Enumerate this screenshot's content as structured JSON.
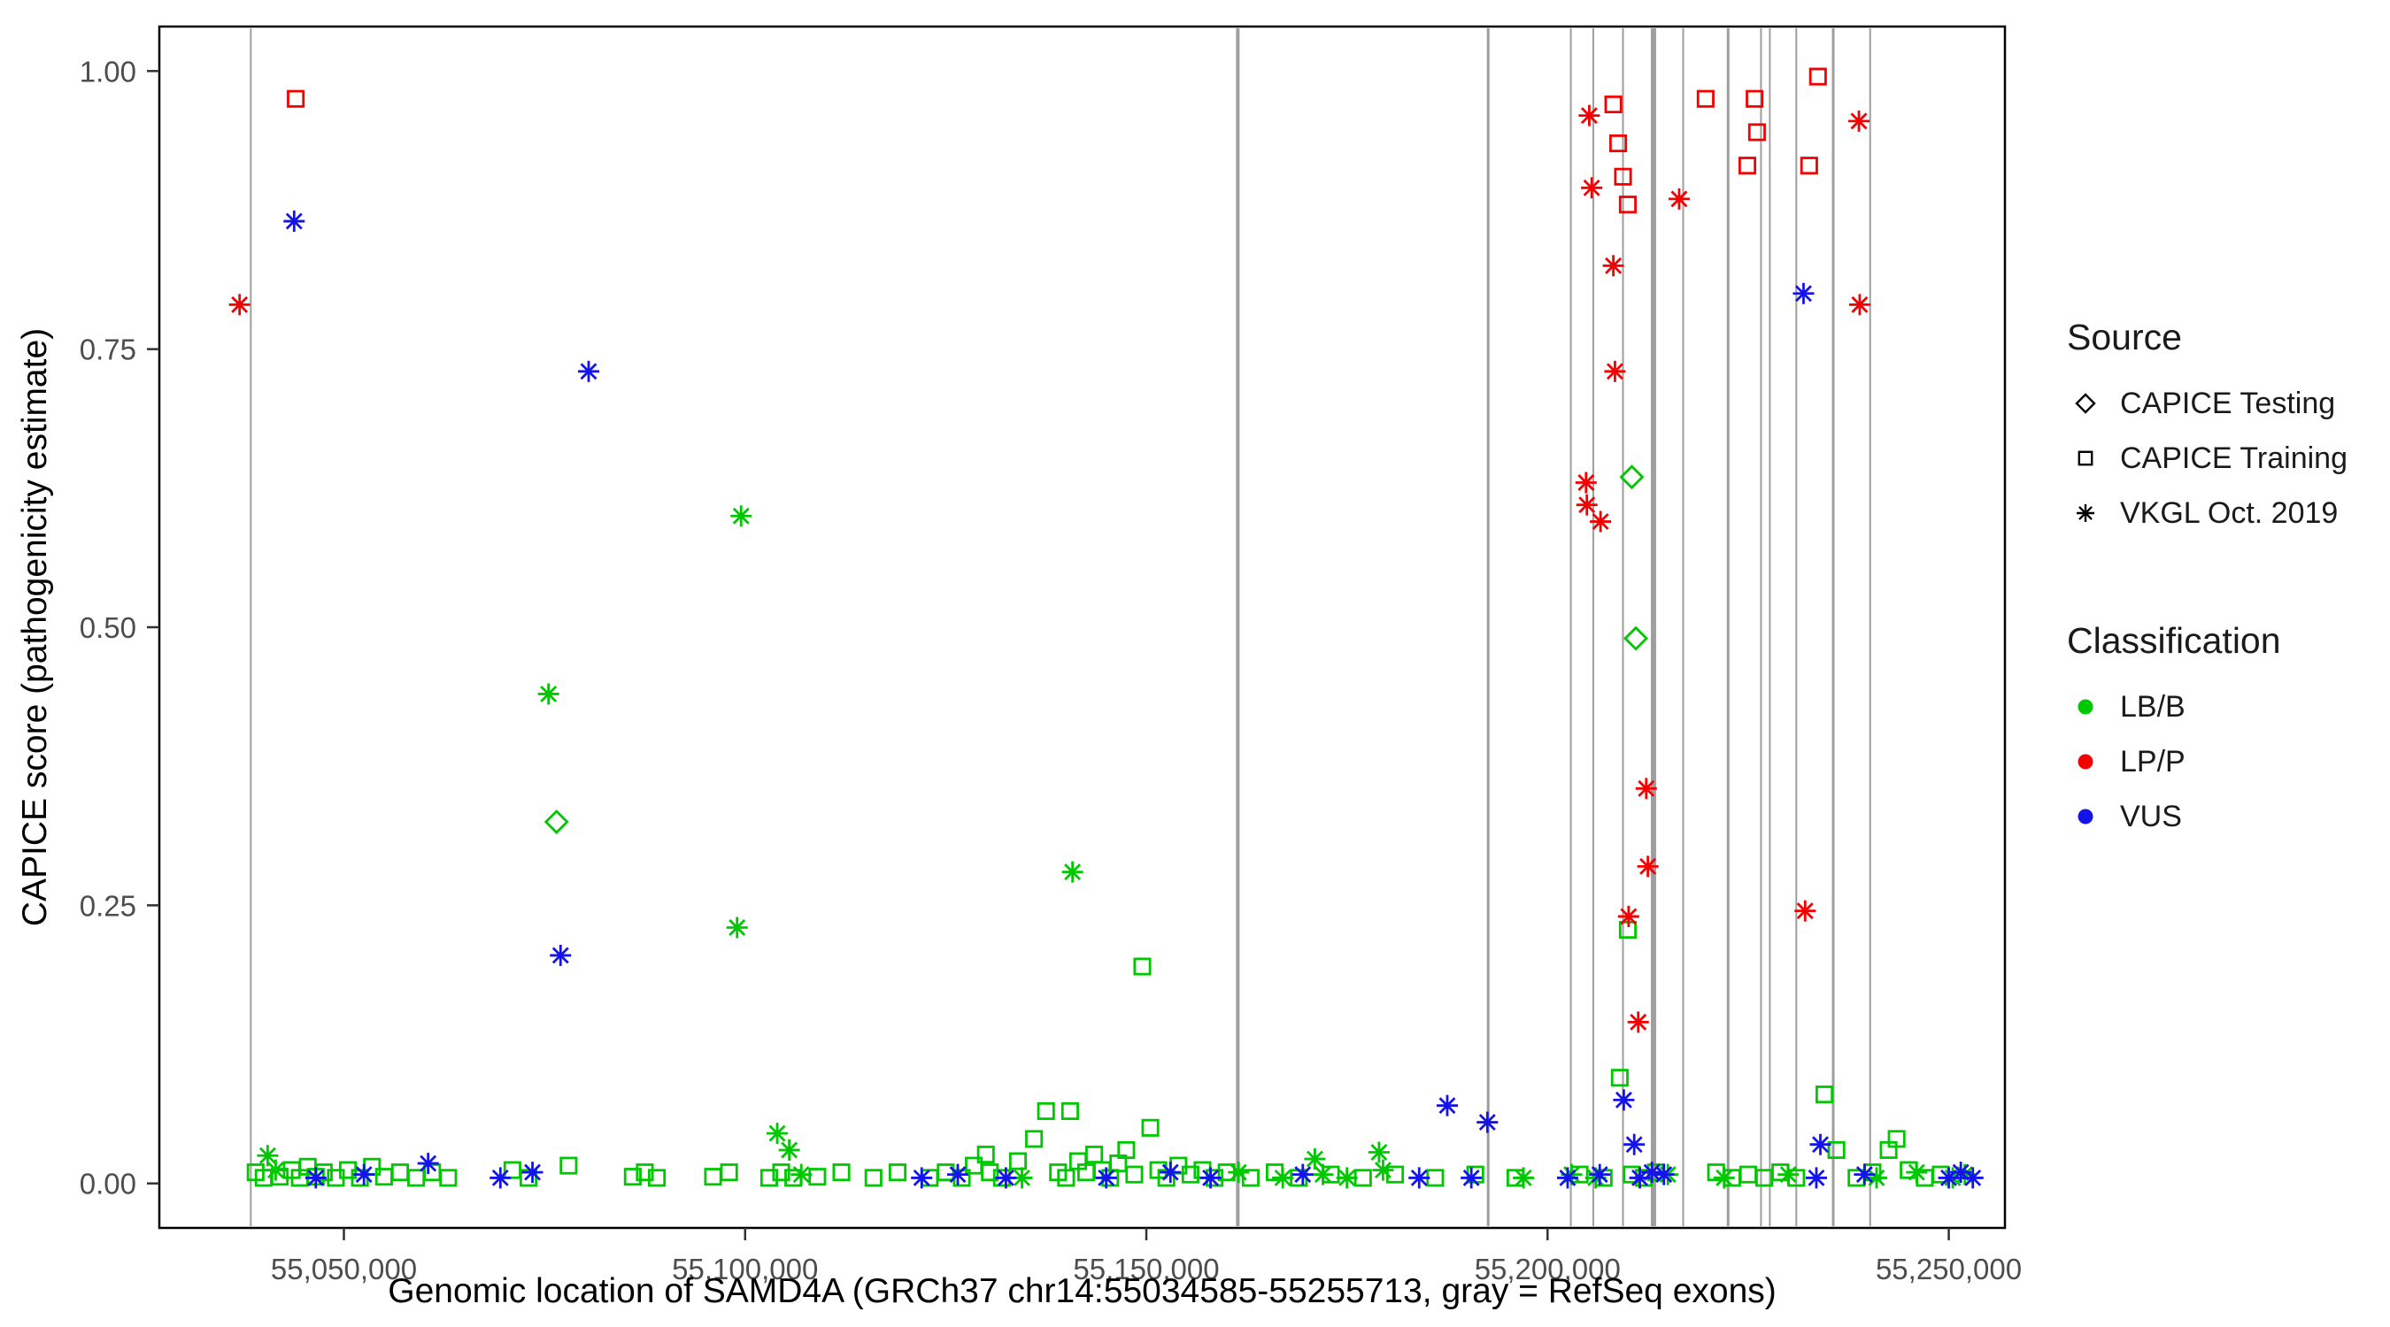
{
  "figure": {
    "background": "#FFFFFF"
  },
  "colors": {
    "LB/B": "#00C800",
    "LP/P": "#F50000",
    "VUS": "#1414E8",
    "exon": "#9E9E9E",
    "axis_text": "#4D4D4D",
    "panel_border": "#000000"
  },
  "legend": {
    "source": {
      "title": "Source",
      "items": [
        {
          "label": "CAPICE Testing",
          "marker": "diamond"
        },
        {
          "label": "CAPICE Training",
          "marker": "square"
        },
        {
          "label": "VKGL Oct. 2019",
          "marker": "asterisk"
        }
      ]
    },
    "classification": {
      "title": "Classification",
      "items": [
        {
          "label": "LB/B",
          "color": "#00C800"
        },
        {
          "label": "LP/P",
          "color": "#F50000"
        },
        {
          "label": "VUS",
          "color": "#1414E8"
        }
      ]
    }
  },
  "chart_data": {
    "type": "scatter",
    "title": "",
    "xlabel": "Genomic location of SAMD4A (GRCh37 chr14:55034585-55255713, gray = RefSeq exons)",
    "ylabel": "CAPICE score (pathogenicity estimate)",
    "xlim": [
      55027000,
      55257000
    ],
    "ylim": [
      -0.04,
      1.04
    ],
    "xticks": [
      {
        "value": 55050000,
        "label": "55,050,000"
      },
      {
        "value": 55100000,
        "label": "55,100,000"
      },
      {
        "value": 55150000,
        "label": "55,150,000"
      },
      {
        "value": 55200000,
        "label": "55,200,000"
      },
      {
        "value": 55250000,
        "label": "55,250,000"
      }
    ],
    "yticks": [
      {
        "value": 0,
        "label": "0.00"
      },
      {
        "value": 0.25,
        "label": "0.25"
      },
      {
        "value": 0.5,
        "label": "0.50"
      },
      {
        "value": 0.75,
        "label": "0.75"
      },
      {
        "value": 1,
        "label": "1.00"
      }
    ],
    "exons": [
      {
        "x": 55038400,
        "w": 2
      },
      {
        "x": 55161400,
        "w": 4
      },
      {
        "x": 55192600,
        "w": 3
      },
      {
        "x": 55202900,
        "w": 2
      },
      {
        "x": 55205700,
        "w": 2
      },
      {
        "x": 55209400,
        "w": 2
      },
      {
        "x": 55213200,
        "w": 6
      },
      {
        "x": 55216900,
        "w": 2
      },
      {
        "x": 55222500,
        "w": 3
      },
      {
        "x": 55226600,
        "w": 2
      },
      {
        "x": 55227700,
        "w": 2
      },
      {
        "x": 55231000,
        "w": 2
      },
      {
        "x": 55235600,
        "w": 3
      },
      {
        "x": 55240200,
        "w": 2
      }
    ],
    "series": [
      {
        "name": "CAPICE Testing - LB/B",
        "source": "CAPICE Testing",
        "classification": "LB/B",
        "marker": "diamond",
        "points": [
          [
            55076500,
            0.325
          ],
          [
            55210500,
            0.635
          ],
          [
            55211000,
            0.49
          ]
        ]
      },
      {
        "name": "CAPICE Training - LB/B",
        "source": "CAPICE Training",
        "classification": "LB/B",
        "marker": "square",
        "points": [
          [
            55039000,
            0.01
          ],
          [
            55040000,
            0.005
          ],
          [
            55042000,
            0.006
          ],
          [
            55043500,
            0.012
          ],
          [
            55044500,
            0.005
          ],
          [
            55045500,
            0.015
          ],
          [
            55046500,
            0.006
          ],
          [
            55047500,
            0.01
          ],
          [
            55049000,
            0.005
          ],
          [
            55050500,
            0.012
          ],
          [
            55052000,
            0.005
          ],
          [
            55053500,
            0.015
          ],
          [
            55055000,
            0.006
          ],
          [
            55057000,
            0.01
          ],
          [
            55059000,
            0.005
          ],
          [
            55061000,
            0.01
          ],
          [
            55063000,
            0.005
          ],
          [
            55071000,
            0.012
          ],
          [
            55073000,
            0.005
          ],
          [
            55078000,
            0.016
          ],
          [
            55086000,
            0.006
          ],
          [
            55087500,
            0.01
          ],
          [
            55089000,
            0.005
          ],
          [
            55096000,
            0.006
          ],
          [
            55098000,
            0.01
          ],
          [
            55103000,
            0.005
          ],
          [
            55104500,
            0.01
          ],
          [
            55106000,
            0.005
          ],
          [
            55109000,
            0.006
          ],
          [
            55112000,
            0.01
          ],
          [
            55116000,
            0.005
          ],
          [
            55119000,
            0.01
          ],
          [
            55123000,
            0.005
          ],
          [
            55125000,
            0.01
          ],
          [
            55127000,
            0.005
          ],
          [
            55128500,
            0.016
          ],
          [
            55130000,
            0.026
          ],
          [
            55130500,
            0.01
          ],
          [
            55132000,
            0.005
          ],
          [
            55134000,
            0.02
          ],
          [
            55136000,
            0.04
          ],
          [
            55137500,
            0.065
          ],
          [
            55139000,
            0.01
          ],
          [
            55140000,
            0.005
          ],
          [
            55140500,
            0.065
          ],
          [
            55141500,
            0.02
          ],
          [
            55142500,
            0.01
          ],
          [
            55143500,
            0.026
          ],
          [
            55144500,
            0.012
          ],
          [
            55145500,
            0.005
          ],
          [
            55146500,
            0.018
          ],
          [
            55147500,
            0.03
          ],
          [
            55148500,
            0.008
          ],
          [
            55149500,
            0.195
          ],
          [
            55150500,
            0.05
          ],
          [
            55151500,
            0.012
          ],
          [
            55152500,
            0.005
          ],
          [
            55154000,
            0.016
          ],
          [
            55155500,
            0.008
          ],
          [
            55157000,
            0.012
          ],
          [
            55158500,
            0.005
          ],
          [
            55160000,
            0.01
          ],
          [
            55163000,
            0.005
          ],
          [
            55166000,
            0.01
          ],
          [
            55169000,
            0.005
          ],
          [
            55173000,
            0.008
          ],
          [
            55177000,
            0.005
          ],
          [
            55181000,
            0.008
          ],
          [
            55186000,
            0.005
          ],
          [
            55191000,
            0.008
          ],
          [
            55196000,
            0.005
          ],
          [
            55204000,
            0.008
          ],
          [
            55207000,
            0.005
          ],
          [
            55209000,
            0.095
          ],
          [
            55210000,
            0.228
          ],
          [
            55210500,
            0.008
          ],
          [
            55212000,
            0.005
          ],
          [
            55213500,
            0.01
          ],
          [
            55221000,
            0.01
          ],
          [
            55223000,
            0.005
          ],
          [
            55225000,
            0.008
          ],
          [
            55227000,
            0.005
          ],
          [
            55229000,
            0.01
          ],
          [
            55231000,
            0.005
          ],
          [
            55234500,
            0.08
          ],
          [
            55236000,
            0.03
          ],
          [
            55238500,
            0.005
          ],
          [
            55240500,
            0.01
          ],
          [
            55242500,
            0.03
          ],
          [
            55243500,
            0.04
          ],
          [
            55245000,
            0.012
          ],
          [
            55247000,
            0.005
          ],
          [
            55249000,
            0.008
          ]
        ]
      },
      {
        "name": "CAPICE Training - LP/P",
        "source": "CAPICE Training",
        "classification": "LP/P",
        "marker": "square",
        "points": [
          [
            55044000,
            0.975
          ],
          [
            55208200,
            0.97
          ],
          [
            55208800,
            0.935
          ],
          [
            55209400,
            0.905
          ],
          [
            55210000,
            0.88
          ],
          [
            55219700,
            0.975
          ],
          [
            55225800,
            0.975
          ],
          [
            55226100,
            0.945
          ],
          [
            55224900,
            0.915
          ],
          [
            55233700,
            0.995
          ],
          [
            55232600,
            0.915
          ]
        ]
      },
      {
        "name": "VKGL Oct. 2019 - LB/B",
        "source": "VKGL Oct. 2019",
        "classification": "LB/B",
        "marker": "asterisk",
        "points": [
          [
            55040500,
            0.025
          ],
          [
            55041500,
            0.012
          ],
          [
            55075500,
            0.44
          ],
          [
            55099500,
            0.6
          ],
          [
            55099000,
            0.23
          ],
          [
            55104000,
            0.045
          ],
          [
            55105500,
            0.03
          ],
          [
            55107000,
            0.008
          ],
          [
            55140800,
            0.28
          ],
          [
            55134500,
            0.005
          ],
          [
            55161500,
            0.01
          ],
          [
            55167000,
            0.005
          ],
          [
            55171000,
            0.022
          ],
          [
            55172000,
            0.008
          ],
          [
            55175000,
            0.005
          ],
          [
            55179000,
            0.028
          ],
          [
            55179500,
            0.012
          ],
          [
            55197000,
            0.005
          ],
          [
            55203000,
            0.008
          ],
          [
            55206000,
            0.005
          ],
          [
            55215000,
            0.008
          ],
          [
            55222000,
            0.005
          ],
          [
            55230000,
            0.008
          ],
          [
            55241000,
            0.005
          ],
          [
            55246000,
            0.01
          ],
          [
            55250500,
            0.005
          ],
          [
            55252000,
            0.008
          ]
        ]
      },
      {
        "name": "VKGL Oct. 2019 - LP/P",
        "source": "VKGL Oct. 2019",
        "classification": "LP/P",
        "marker": "asterisk",
        "points": [
          [
            55037000,
            0.79
          ],
          [
            55205200,
            0.96
          ],
          [
            55205500,
            0.895
          ],
          [
            55208200,
            0.825
          ],
          [
            55208400,
            0.73
          ],
          [
            55204800,
            0.63
          ],
          [
            55204900,
            0.61
          ],
          [
            55206600,
            0.595
          ],
          [
            55212300,
            0.355
          ],
          [
            55212500,
            0.285
          ],
          [
            55210100,
            0.24
          ],
          [
            55211300,
            0.145
          ],
          [
            55216400,
            0.885
          ],
          [
            55238800,
            0.955
          ],
          [
            55238900,
            0.79
          ],
          [
            55232100,
            0.245
          ]
        ]
      },
      {
        "name": "VKGL Oct. 2019 - VUS",
        "source": "VKGL Oct. 2019",
        "classification": "VUS",
        "marker": "asterisk",
        "points": [
          [
            55043800,
            0.865
          ],
          [
            55080500,
            0.73
          ],
          [
            55077000,
            0.205
          ],
          [
            55046500,
            0.005
          ],
          [
            55052500,
            0.008
          ],
          [
            55060500,
            0.018
          ],
          [
            55069500,
            0.005
          ],
          [
            55073500,
            0.01
          ],
          [
            55122000,
            0.005
          ],
          [
            55126500,
            0.008
          ],
          [
            55132500,
            0.005
          ],
          [
            55145000,
            0.005
          ],
          [
            55153000,
            0.01
          ],
          [
            55158000,
            0.005
          ],
          [
            55169500,
            0.008
          ],
          [
            55184000,
            0.005
          ],
          [
            55187500,
            0.07
          ],
          [
            55192500,
            0.055
          ],
          [
            55190500,
            0.005
          ],
          [
            55202500,
            0.005
          ],
          [
            55206500,
            0.008
          ],
          [
            55209500,
            0.075
          ],
          [
            55210800,
            0.035
          ],
          [
            55211500,
            0.005
          ],
          [
            55213000,
            0.01
          ],
          [
            55214500,
            0.008
          ],
          [
            55231900,
            0.8
          ],
          [
            55234000,
            0.035
          ],
          [
            55233500,
            0.005
          ],
          [
            55239500,
            0.008
          ],
          [
            55250000,
            0.005
          ],
          [
            55251500,
            0.01
          ],
          [
            55253000,
            0.005
          ]
        ]
      }
    ]
  }
}
